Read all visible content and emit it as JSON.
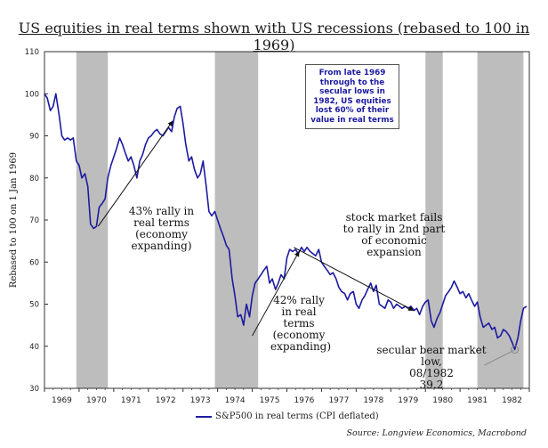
{
  "title": "US equities in real terms shown with US recessions (rebased to 100 in 1969)",
  "source": "Source: Longview Economics, Macrobond",
  "chart_data": {
    "type": "line",
    "ylabel": "Rebased to 100 on 1 Jan 1969",
    "ylim": [
      30,
      110
    ],
    "yticks": [
      30,
      40,
      50,
      60,
      70,
      80,
      90,
      100,
      110
    ],
    "xlim": [
      1969.0,
      1983.0
    ],
    "xtick_labels": [
      "1969",
      "1970",
      "1971",
      "1972",
      "1973",
      "1974",
      "1975",
      "1976",
      "1977",
      "1978",
      "1979",
      "1980",
      "1981",
      "1982"
    ],
    "grid": false,
    "legend": "bottom",
    "series": [
      {
        "name": "S&P500 in real terms (CPI deflated)",
        "color": "#1c1aa0",
        "x": [
          1969.0,
          1969.08,
          1969.17,
          1969.25,
          1969.33,
          1969.42,
          1969.5,
          1969.58,
          1969.67,
          1969.75,
          1969.83,
          1969.92,
          1970.0,
          1970.08,
          1970.17,
          1970.25,
          1970.33,
          1970.42,
          1970.5,
          1970.58,
          1970.67,
          1970.75,
          1970.83,
          1970.92,
          1971.0,
          1971.08,
          1971.17,
          1971.25,
          1971.33,
          1971.42,
          1971.5,
          1971.58,
          1971.67,
          1971.75,
          1971.83,
          1971.92,
          1972.0,
          1972.08,
          1972.17,
          1972.25,
          1972.33,
          1972.42,
          1972.5,
          1972.58,
          1972.67,
          1972.75,
          1972.83,
          1972.92,
          1973.0,
          1973.08,
          1973.17,
          1973.25,
          1973.33,
          1973.42,
          1973.5,
          1973.58,
          1973.67,
          1973.75,
          1973.83,
          1973.92,
          1974.0,
          1974.08,
          1974.17,
          1974.25,
          1974.33,
          1974.42,
          1974.5,
          1974.58,
          1974.67,
          1974.75,
          1974.83,
          1974.92,
          1975.0,
          1975.08,
          1975.17,
          1975.25,
          1975.33,
          1975.42,
          1975.5,
          1975.58,
          1975.67,
          1975.75,
          1975.83,
          1975.92,
          1976.0,
          1976.08,
          1976.17,
          1976.25,
          1976.33,
          1976.42,
          1976.5,
          1976.58,
          1976.67,
          1976.75,
          1976.83,
          1976.92,
          1977.0,
          1977.08,
          1977.17,
          1977.25,
          1977.33,
          1977.42,
          1977.5,
          1977.58,
          1977.67,
          1977.75,
          1977.83,
          1977.92,
          1978.0,
          1978.08,
          1978.17,
          1978.25,
          1978.33,
          1978.42,
          1978.5,
          1978.58,
          1978.67,
          1978.75,
          1978.83,
          1978.92,
          1979.0,
          1979.08,
          1979.17,
          1979.25,
          1979.33,
          1979.42,
          1979.5,
          1979.58,
          1979.67,
          1979.75,
          1979.83,
          1979.92,
          1980.0,
          1980.08,
          1980.17,
          1980.25,
          1980.33,
          1980.42,
          1980.5,
          1980.58,
          1980.67,
          1980.75,
          1980.83,
          1980.92,
          1981.0,
          1981.08,
          1981.17,
          1981.25,
          1981.33,
          1981.42,
          1981.5,
          1981.58,
          1981.67,
          1981.75,
          1981.83,
          1981.92,
          1982.0,
          1982.08,
          1982.17,
          1982.25,
          1982.33,
          1982.42,
          1982.5,
          1982.58,
          1982.67,
          1982.75,
          1982.83,
          1982.92
        ],
        "y": [
          100.0,
          99.0,
          96.0,
          97.0,
          100.0,
          95.0,
          90.0,
          89.0,
          89.5,
          89.0,
          89.5,
          84.0,
          83.0,
          80.0,
          81.0,
          78.0,
          69.0,
          68.0,
          68.5,
          73.0,
          74.0,
          75.0,
          80.0,
          83.0,
          85.0,
          87.0,
          89.5,
          88.0,
          86.0,
          84.0,
          85.0,
          83.0,
          80.0,
          84.0,
          85.5,
          88.0,
          89.5,
          90.0,
          91.0,
          91.5,
          90.5,
          90.0,
          91.0,
          92.0,
          91.0,
          94.5,
          96.5,
          97.0,
          93.0,
          88.0,
          84.0,
          85.0,
          82.0,
          80.0,
          81.0,
          84.0,
          78.0,
          72.0,
          71.0,
          72.0,
          70.0,
          68.0,
          66.0,
          64.0,
          63.0,
          56.0,
          52.0,
          47.0,
          47.5,
          45.0,
          50.0,
          47.0,
          52.0,
          55.0,
          56.0,
          57.0,
          58.0,
          59.0,
          55.0,
          56.0,
          53.5,
          55.0,
          57.0,
          56.0,
          61.0,
          63.0,
          62.5,
          63.0,
          62.0,
          63.5,
          62.5,
          63.5,
          62.5,
          62.0,
          61.5,
          63.0,
          60.0,
          59.0,
          58.0,
          57.0,
          57.5,
          56.0,
          54.0,
          53.0,
          52.5,
          51.0,
          52.5,
          53.0,
          50.0,
          49.0,
          51.0,
          52.0,
          53.5,
          55.0,
          53.0,
          54.5,
          50.0,
          49.5,
          49.0,
          51.0,
          50.5,
          49.0,
          50.0,
          49.5,
          49.0,
          49.5,
          49.0,
          49.5,
          48.5,
          49.0,
          47.5,
          49.5,
          50.5,
          51.0,
          46.0,
          44.5,
          46.5,
          48.0,
          50.0,
          52.0,
          53.0,
          54.0,
          55.5,
          54.0,
          52.5,
          53.0,
          51.5,
          52.5,
          51.0,
          49.5,
          50.5,
          47.0,
          44.5,
          45.0,
          45.5,
          44.0,
          44.5,
          42.0,
          42.5,
          44.0,
          43.5,
          42.5,
          41.0,
          39.2,
          42.0,
          46.0,
          49.0,
          49.5
        ]
      }
    ],
    "recessions": [
      [
        1969.92,
        1970.83
      ],
      [
        1973.92,
        1975.17
      ],
      [
        1980.0,
        1980.5
      ],
      [
        1981.5,
        1982.83
      ]
    ],
    "annotations": {
      "note_box": "From late 1969 through to the secular lows in 1982, US equities lost 60% of their value in real terms",
      "rally1": [
        "43% rally in",
        "real terms",
        "(economy",
        "expanding)"
      ],
      "rally2": [
        "42% rally",
        "in real",
        "terms",
        "(economy",
        "expanding)"
      ],
      "fails": [
        "stock market fails",
        "to rally in 2nd part",
        "of economic",
        "expansion"
      ],
      "low": [
        "secular bear market low,",
        "08/1982",
        "39.2"
      ]
    }
  }
}
